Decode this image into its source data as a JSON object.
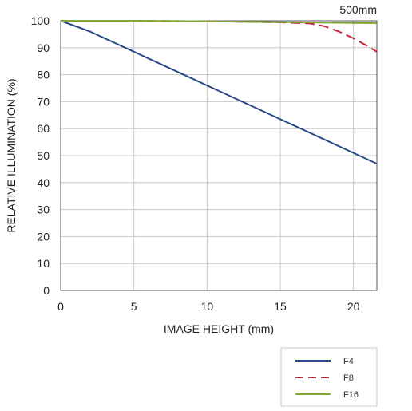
{
  "chart_data": {
    "type": "line",
    "title": "500mm",
    "xlabel": "IMAGE HEIGHT (mm)",
    "ylabel": "RELATIVE ILLUMINATION (%)",
    "xlim": [
      0,
      21.6
    ],
    "ylim": [
      0,
      100
    ],
    "x_ticks": [
      0,
      5,
      10,
      15,
      20
    ],
    "y_ticks": [
      0,
      10,
      20,
      30,
      40,
      50,
      60,
      70,
      80,
      90,
      100
    ],
    "x_tick_labels": [
      "0",
      "5",
      "10",
      "15",
      "20"
    ],
    "y_tick_labels": [
      "0",
      "10",
      "20",
      "30",
      "40",
      "50",
      "60",
      "70",
      "80",
      "90",
      "100"
    ],
    "grid": true,
    "legend_position": "bottom-right",
    "series": [
      {
        "name": "F4",
        "color": "#2b4a87",
        "dash": "solid",
        "x": [
          0,
          2,
          4,
          6,
          8,
          10,
          12,
          14,
          16,
          18,
          20,
          21,
          21.6
        ],
        "y": [
          100,
          96,
          91,
          86,
          81,
          76,
          71,
          66,
          61,
          56,
          51,
          48.5,
          47
        ]
      },
      {
        "name": "F8",
        "color": "#c8283a",
        "dash": "dashed",
        "x": [
          0,
          5,
          10,
          15,
          16,
          17,
          18,
          19,
          20,
          21,
          21.6
        ],
        "y": [
          100,
          100,
          99.8,
          99.4,
          99.2,
          99,
          98,
          96,
          93.5,
          90.5,
          88.5
        ]
      },
      {
        "name": "F16",
        "color": "#7fa832",
        "dash": "solid",
        "x": [
          0,
          5,
          10,
          15,
          20,
          21.6
        ],
        "y": [
          100,
          100,
          99.8,
          99.5,
          99.2,
          99.1
        ]
      }
    ]
  }
}
